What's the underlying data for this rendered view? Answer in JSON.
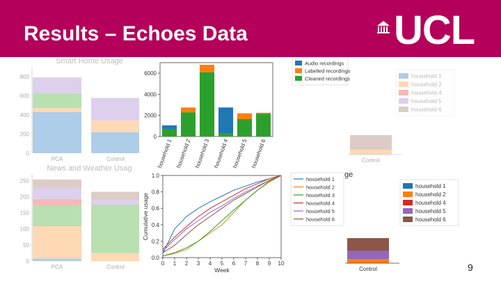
{
  "slide": {
    "title": "Results – Echoes Data",
    "logo_text": "UCL",
    "page_number": "9"
  },
  "colors": {
    "header": "#b4005a",
    "household_1": "#1f77b4",
    "household_2": "#ff7f0e",
    "household_3": "#2ca02c",
    "household_4": "#d62728",
    "household_5": "#9467bd",
    "household_6": "#8c564b"
  },
  "chart_data": [
    {
      "type": "bar",
      "title": "Smart Home Usage",
      "categories": [
        "PCA",
        "Control"
      ],
      "ylim": [
        0,
        900
      ],
      "yticks": [
        0,
        200,
        400,
        600,
        800
      ],
      "faded": true,
      "series": [
        {
          "name": "household 1",
          "color": "#aecde8",
          "values": [
            430,
            220
          ]
        },
        {
          "name": "household 2",
          "color": "#ffd8b4",
          "values": [
            40,
            120
          ]
        },
        {
          "name": "household 3",
          "color": "#b8e0b0",
          "values": [
            150,
            0
          ]
        },
        {
          "name": "household 5",
          "color": "#ddd0ec",
          "values": [
            170,
            235
          ]
        }
      ]
    },
    {
      "type": "bar",
      "title": "News and Weather Usag",
      "categories": [
        "PCA",
        "Control"
      ],
      "ylim": [
        0,
        270
      ],
      "yticks": [
        0,
        50,
        100,
        150,
        200,
        250
      ],
      "faded": true,
      "series": [
        {
          "name": "household 1",
          "color": "#aecde8",
          "values": [
            8,
            0
          ]
        },
        {
          "name": "household 2",
          "color": "#ffd8b4",
          "values": [
            100,
            25
          ]
        },
        {
          "name": "household 3",
          "color": "#b8e0b0",
          "values": [
            65,
            150
          ]
        },
        {
          "name": "household 4",
          "color": "#f4b9b8",
          "values": [
            20,
            0
          ]
        },
        {
          "name": "household 5",
          "color": "#ddd0ec",
          "values": [
            35,
            15
          ]
        },
        {
          "name": "household 6",
          "color": "#ddccc6",
          "values": [
            25,
            25
          ]
        }
      ]
    },
    {
      "type": "bar",
      "title": "",
      "categories": [
        "household 1",
        "household 2",
        "household 3",
        "household 4",
        "household 5",
        "household 6"
      ],
      "ylim": [
        0,
        7000
      ],
      "yticks": [
        0,
        2000,
        4000,
        6000
      ],
      "legend": "top-right",
      "series": [
        {
          "name": "Cleaned recordings",
          "color": "#2ca02c",
          "values": [
            700,
            2300,
            6100,
            300,
            1650,
            2150
          ]
        },
        {
          "name": "Labelled recordings",
          "color": "#ff7f0e",
          "values": [
            0,
            450,
            700,
            0,
            550,
            100
          ]
        },
        {
          "name": "Audio recordings",
          "color": "#1f77b4",
          "values": [
            350,
            0,
            0,
            2450,
            0,
            0
          ]
        }
      ]
    },
    {
      "type": "line",
      "title": "",
      "xlabel": "Week",
      "ylabel": "Cumulative usage",
      "xlim": [
        0,
        10
      ],
      "ylim": [
        0,
        1.0
      ],
      "xticks": [
        0,
        1,
        2,
        3,
        4,
        5,
        6,
        7,
        8,
        9,
        10
      ],
      "yticks": [
        0.0,
        0.2,
        0.4,
        0.6,
        0.8,
        1.0
      ],
      "legend": "upper-left",
      "series": [
        {
          "name": "household 1",
          "color": "#1f77b4",
          "x": [
            0,
            0.5,
            1,
            2,
            3,
            4,
            5,
            6,
            7,
            8,
            9,
            10
          ],
          "y": [
            0.05,
            0.2,
            0.35,
            0.5,
            0.6,
            0.68,
            0.75,
            0.82,
            0.87,
            0.92,
            0.96,
            1.0
          ]
        },
        {
          "name": "household 2",
          "color": "#ff7f0e",
          "x": [
            0,
            1,
            2,
            3,
            4,
            5,
            6,
            7,
            8,
            9,
            10
          ],
          "y": [
            0.02,
            0.05,
            0.1,
            0.2,
            0.3,
            0.4,
            0.55,
            0.7,
            0.82,
            0.92,
            1.0
          ]
        },
        {
          "name": "household 3",
          "color": "#2ca02c",
          "x": [
            0,
            1,
            2,
            3,
            4,
            5,
            6,
            7,
            8,
            9,
            10
          ],
          "y": [
            0.02,
            0.06,
            0.12,
            0.2,
            0.32,
            0.45,
            0.58,
            0.7,
            0.82,
            0.93,
            1.0
          ]
        },
        {
          "name": "household 4",
          "color": "#d62728",
          "x": [
            0,
            1,
            2,
            3,
            4,
            5,
            6,
            7,
            8,
            9,
            10
          ],
          "y": [
            0.1,
            0.25,
            0.38,
            0.5,
            0.6,
            0.68,
            0.76,
            0.84,
            0.9,
            0.96,
            1.0
          ]
        },
        {
          "name": "household 5",
          "color": "#9467bd",
          "x": [
            0,
            1,
            2,
            3,
            4,
            5,
            6,
            7,
            8,
            9,
            10
          ],
          "y": [
            0.08,
            0.22,
            0.35,
            0.45,
            0.55,
            0.63,
            0.72,
            0.8,
            0.87,
            0.94,
            1.0
          ]
        },
        {
          "name": "household 6",
          "color": "#8c564b",
          "x": [
            0,
            1,
            2,
            3,
            4,
            5,
            6,
            7,
            8,
            9,
            10
          ],
          "y": [
            0.06,
            0.15,
            0.28,
            0.4,
            0.5,
            0.6,
            0.7,
            0.78,
            0.86,
            0.94,
            1.0
          ]
        }
      ]
    },
    {
      "type": "bar",
      "title": "",
      "categories": [
        "Control"
      ],
      "faded": true,
      "legend": "right",
      "series": [
        {
          "name": "household 1",
          "color": "#aecde8",
          "values": [
            0
          ]
        },
        {
          "name": "household 2",
          "color": "#ffd8b4",
          "values": [
            1
          ]
        },
        {
          "name": "household 4",
          "color": "#f4b9b8",
          "values": [
            0
          ]
        },
        {
          "name": "household 5",
          "color": "#ddd0ec",
          "values": [
            0
          ]
        },
        {
          "name": "household 6",
          "color": "#ddccc6",
          "values": [
            3
          ]
        }
      ]
    },
    {
      "type": "bar",
      "title": "ge",
      "categories": [
        "Control"
      ],
      "legend": "right",
      "series": [
        {
          "name": "household 1",
          "color": "#1f77b4",
          "values": [
            0
          ]
        },
        {
          "name": "household 2",
          "color": "#ff7f0e",
          "values": [
            1
          ]
        },
        {
          "name": "household 4",
          "color": "#d62728",
          "values": [
            0
          ]
        },
        {
          "name": "household 5",
          "color": "#9467bd",
          "values": [
            2
          ]
        },
        {
          "name": "household 6",
          "color": "#8c564b",
          "values": [
            3
          ]
        }
      ]
    }
  ]
}
